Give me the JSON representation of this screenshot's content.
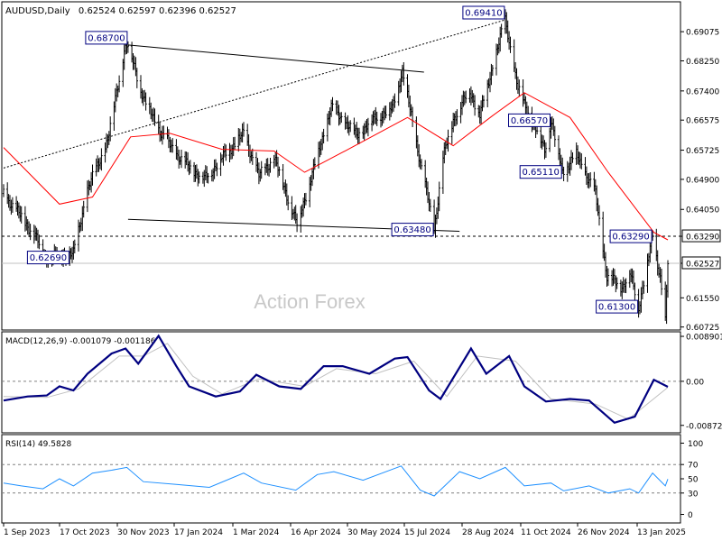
{
  "header": {
    "symbol": "AUDUSD,Daily",
    "ohlc": "0.62524 0.62597 0.62396 0.62527"
  },
  "watermark": "Action Forex",
  "colors": {
    "bars": "#000000",
    "ma": "#ff0000",
    "macd": "#000080",
    "signal": "#c0c0c0",
    "rsi": "#1e90ff",
    "label_border": "#000080",
    "label_text": "#000080",
    "current_tag_bg": "#ffffff",
    "current_line": "#c0c0c0"
  },
  "chart_data": [
    {
      "type": "ohlc",
      "series": [
        {
          "name": "AUDUSD",
          "values": "ohlc-path"
        }
      ],
      "ylim": [
        0.6064,
        0.6992
      ],
      "y_ticks": [
        "0.69075",
        "0.68250",
        "0.67400",
        "0.66575",
        "0.65725",
        "0.64900",
        "0.64050",
        "0.63290",
        "0.62527",
        "0.61550",
        "0.60725"
      ],
      "y_tick_values": [
        0.69075,
        0.6825,
        0.674,
        0.66575,
        0.65725,
        0.649,
        0.6405,
        0.6329,
        0.62527,
        0.6155,
        0.60725
      ],
      "x_ticks": [
        "1 Sep 2023",
        "17 Oct 2023",
        "30 Nov 2023",
        "17 Jan 2024",
        "1 Mar 2024",
        "16 Apr 2024",
        "30 May 2024",
        "15 Jul 2024",
        "28 Aug 2024",
        "11 Oct 2024",
        "26 Nov 2024",
        "13 Jan 2025"
      ],
      "pivots": [
        {
          "date": "2023-09-01",
          "value": 0.645
        },
        {
          "date": "2023-09-25",
          "value": 0.6335
        },
        {
          "date": "2023-10-04",
          "value": 0.6269
        },
        {
          "date": "2023-10-26",
          "value": 0.628
        },
        {
          "date": "2023-11-06",
          "value": 0.646
        },
        {
          "date": "2023-11-22",
          "value": 0.66
        },
        {
          "date": "2023-12-05",
          "value": 0.6855
        },
        {
          "date": "2023-12-08",
          "value": 0.687
        },
        {
          "date": "2023-12-20",
          "value": 0.672
        },
        {
          "date": "2024-01-03",
          "value": 0.662
        },
        {
          "date": "2024-01-20",
          "value": 0.654
        },
        {
          "date": "2024-02-06",
          "value": 0.649
        },
        {
          "date": "2024-02-20",
          "value": 0.655
        },
        {
          "date": "2024-03-08",
          "value": 0.662
        },
        {
          "date": "2024-03-20",
          "value": 0.65
        },
        {
          "date": "2024-04-01",
          "value": 0.655
        },
        {
          "date": "2024-04-19",
          "value": 0.6362
        },
        {
          "date": "2024-05-01",
          "value": 0.6505
        },
        {
          "date": "2024-05-16",
          "value": 0.6695
        },
        {
          "date": "2024-06-05",
          "value": 0.6615
        },
        {
          "date": "2024-06-20",
          "value": 0.6665
        },
        {
          "date": "2024-07-03",
          "value": 0.669
        },
        {
          "date": "2024-07-11",
          "value": 0.6798
        },
        {
          "date": "2024-07-25",
          "value": 0.654
        },
        {
          "date": "2024-08-05",
          "value": 0.6348
        },
        {
          "date": "2024-08-12",
          "value": 0.655
        },
        {
          "date": "2024-08-20",
          "value": 0.666
        },
        {
          "date": "2024-09-02",
          "value": 0.674
        },
        {
          "date": "2024-09-10",
          "value": 0.667
        },
        {
          "date": "2024-09-20",
          "value": 0.681
        },
        {
          "date": "2024-09-30",
          "value": 0.6941
        },
        {
          "date": "2024-10-10",
          "value": 0.6745
        },
        {
          "date": "2024-10-18",
          "value": 0.668
        },
        {
          "date": "2024-10-31",
          "value": 0.6575
        },
        {
          "date": "2024-11-05",
          "value": 0.6655
        },
        {
          "date": "2024-11-14",
          "value": 0.6511
        },
        {
          "date": "2024-11-25",
          "value": 0.656
        },
        {
          "date": "2024-12-10",
          "value": 0.645
        },
        {
          "date": "2024-12-19",
          "value": 0.6215
        },
        {
          "date": "2024-12-31",
          "value": 0.6185
        },
        {
          "date": "2025-01-06",
          "value": 0.6225
        },
        {
          "date": "2025-01-13",
          "value": 0.613
        },
        {
          "date": "2025-01-20",
          "value": 0.6255
        },
        {
          "date": "2025-01-24",
          "value": 0.6329
        },
        {
          "date": "2025-01-30",
          "value": 0.6215
        },
        {
          "date": "2025-02-03",
          "value": 0.6088
        },
        {
          "date": "2025-02-05",
          "value": 0.6253
        }
      ],
      "ma_path": [
        {
          "date": "2023-09-01",
          "value": 0.658
        },
        {
          "date": "2023-10-15",
          "value": 0.642
        },
        {
          "date": "2023-11-10",
          "value": 0.644
        },
        {
          "date": "2023-12-10",
          "value": 0.661
        },
        {
          "date": "2024-01-10",
          "value": 0.662
        },
        {
          "date": "2024-02-20",
          "value": 0.6575
        },
        {
          "date": "2024-04-01",
          "value": 0.657
        },
        {
          "date": "2024-04-25",
          "value": 0.651
        },
        {
          "date": "2024-06-01",
          "value": 0.658
        },
        {
          "date": "2024-07-15",
          "value": 0.6665
        },
        {
          "date": "2024-08-20",
          "value": 0.6585
        },
        {
          "date": "2024-09-20",
          "value": 0.667
        },
        {
          "date": "2024-10-15",
          "value": 0.6735
        },
        {
          "date": "2024-11-20",
          "value": 0.6665
        },
        {
          "date": "2024-12-20",
          "value": 0.651
        },
        {
          "date": "2025-01-25",
          "value": 0.634
        },
        {
          "date": "2025-02-05",
          "value": 0.6319
        }
      ],
      "annotations": [
        {
          "text": "0.68700",
          "date": "2023-12-08",
          "value": 0.687,
          "side": "left",
          "anchor": "above"
        },
        {
          "text": "0.69410",
          "date": "2024-09-30",
          "value": 0.6941,
          "side": "left",
          "anchor": "above"
        },
        {
          "text": "0.66570",
          "date": "2024-11-05",
          "value": 0.6657,
          "side": "left",
          "anchor": "center"
        },
        {
          "text": "0.65110",
          "date": "2024-11-14",
          "value": 0.6511,
          "side": "left",
          "anchor": "center"
        },
        {
          "text": "0.63480",
          "date": "2024-08-05",
          "value": 0.6348,
          "side": "left",
          "anchor": "center"
        },
        {
          "text": "0.62690",
          "date": "2023-10-04",
          "value": 0.6269,
          "side": "right",
          "anchor": "center"
        },
        {
          "text": "0.63290",
          "date": "2025-01-24",
          "value": 0.6329,
          "side": "left",
          "anchor": "center"
        },
        {
          "text": "0.61300",
          "date": "2025-01-13",
          "value": 0.613,
          "side": "left",
          "anchor": "center"
        }
      ],
      "trendlines": [
        {
          "from": {
            "date": "2023-09-01",
            "value": 0.6522
          },
          "to": {
            "date": "2024-09-30",
            "value": 0.6941
          },
          "style": "dotted"
        },
        {
          "from": {
            "date": "2023-12-08",
            "value": 0.687
          },
          "to": {
            "date": "2024-07-28",
            "value": 0.6793
          },
          "style": "solid"
        },
        {
          "from": {
            "date": "2023-12-08",
            "value": 0.6377
          },
          "to": {
            "date": "2024-08-25",
            "value": 0.6343
          },
          "style": "solid"
        }
      ],
      "levels": [
        {
          "value": 0.6329,
          "style": "dashed"
        },
        {
          "value": 0.62527,
          "style": "solid-gray"
        }
      ],
      "current_price": "0.62527",
      "current_value": 0.62527
    },
    {
      "type": "line",
      "title": "MACD(12,26,9) -0.001079 -0.001186",
      "series": [
        {
          "name": "MACD",
          "values": "macd-path"
        },
        {
          "name": "Signal",
          "values": "signal-path"
        }
      ],
      "ylim": [
        -0.0102,
        0.0098
      ],
      "y_ticks": [
        "0.008901",
        "0.00",
        "-0.008729"
      ],
      "y_tick_values": [
        0.008901,
        0,
        -0.008729
      ],
      "macd_path": [
        {
          "date": "2023-09-01",
          "value": -0.0038
        },
        {
          "date": "2023-09-20",
          "value": -0.003
        },
        {
          "date": "2023-10-05",
          "value": -0.0028
        },
        {
          "date": "2023-10-15",
          "value": -0.001
        },
        {
          "date": "2023-10-26",
          "value": -0.0018
        },
        {
          "date": "2023-11-06",
          "value": 0.0015
        },
        {
          "date": "2023-11-25",
          "value": 0.0055
        },
        {
          "date": "2023-12-06",
          "value": 0.0065
        },
        {
          "date": "2023-12-16",
          "value": 0.0035
        },
        {
          "date": "2024-01-01",
          "value": 0.009
        },
        {
          "date": "2024-01-15",
          "value": 0.003
        },
        {
          "date": "2024-01-25",
          "value": -0.001
        },
        {
          "date": "2024-02-15",
          "value": -0.003
        },
        {
          "date": "2024-03-05",
          "value": -0.002
        },
        {
          "date": "2024-03-18",
          "value": 0.0013
        },
        {
          "date": "2024-04-05",
          "value": -0.001
        },
        {
          "date": "2024-04-22",
          "value": -0.0015
        },
        {
          "date": "2024-05-10",
          "value": 0.003
        },
        {
          "date": "2024-05-25",
          "value": 0.003
        },
        {
          "date": "2024-06-15",
          "value": 0.0015
        },
        {
          "date": "2024-07-05",
          "value": 0.0045
        },
        {
          "date": "2024-07-15",
          "value": 0.0048
        },
        {
          "date": "2024-08-01",
          "value": -0.0018
        },
        {
          "date": "2024-08-10",
          "value": -0.0035
        },
        {
          "date": "2024-09-03",
          "value": 0.0065
        },
        {
          "date": "2024-09-15",
          "value": 0.0015
        },
        {
          "date": "2024-10-03",
          "value": 0.005
        },
        {
          "date": "2024-10-15",
          "value": -0.001
        },
        {
          "date": "2024-11-01",
          "value": -0.004
        },
        {
          "date": "2024-11-20",
          "value": -0.0035
        },
        {
          "date": "2024-12-05",
          "value": -0.0038
        },
        {
          "date": "2024-12-25",
          "value": -0.0082
        },
        {
          "date": "2025-01-10",
          "value": -0.007
        },
        {
          "date": "2025-01-25",
          "value": 0.0003
        },
        {
          "date": "2025-02-05",
          "value": -0.0011
        }
      ],
      "signal_path": [
        {
          "date": "2023-09-01",
          "value": -0.003
        },
        {
          "date": "2023-10-05",
          "value": -0.0032
        },
        {
          "date": "2023-10-30",
          "value": -0.0015
        },
        {
          "date": "2023-12-01",
          "value": 0.005
        },
        {
          "date": "2023-12-20",
          "value": 0.005
        },
        {
          "date": "2024-01-08",
          "value": 0.0075
        },
        {
          "date": "2024-01-28",
          "value": 0.001
        },
        {
          "date": "2024-02-20",
          "value": -0.0025
        },
        {
          "date": "2024-03-20",
          "value": 0.0005
        },
        {
          "date": "2024-04-25",
          "value": -0.001
        },
        {
          "date": "2024-05-20",
          "value": 0.0025
        },
        {
          "date": "2024-06-20",
          "value": 0.0015
        },
        {
          "date": "2024-07-20",
          "value": 0.004
        },
        {
          "date": "2024-08-15",
          "value": -0.003
        },
        {
          "date": "2024-09-08",
          "value": 0.005
        },
        {
          "date": "2024-10-08",
          "value": 0.004
        },
        {
          "date": "2024-11-05",
          "value": -0.0035
        },
        {
          "date": "2024-12-10",
          "value": -0.0045
        },
        {
          "date": "2025-01-05",
          "value": -0.0075
        },
        {
          "date": "2025-02-05",
          "value": -0.0012
        }
      ]
    },
    {
      "type": "line",
      "title": "RSI(14) 49.5828",
      "series": [
        {
          "name": "RSI",
          "values": "rsi-path"
        }
      ],
      "ylim": [
        -12,
        112
      ],
      "y_ticks": [
        "100",
        "70",
        "50",
        "30",
        "0"
      ],
      "y_tick_values": [
        100,
        70,
        50,
        30,
        0
      ],
      "levels": [
        70,
        30
      ],
      "rsi_path": [
        {
          "date": "2023-09-01",
          "value": 44
        },
        {
          "date": "2023-09-15",
          "value": 40
        },
        {
          "date": "2023-10-02",
          "value": 36
        },
        {
          "date": "2023-10-15",
          "value": 50
        },
        {
          "date": "2023-10-26",
          "value": 40
        },
        {
          "date": "2023-11-10",
          "value": 58
        },
        {
          "date": "2023-11-25",
          "value": 62
        },
        {
          "date": "2023-12-07",
          "value": 66
        },
        {
          "date": "2023-12-20",
          "value": 46
        },
        {
          "date": "2024-01-15",
          "value": 42
        },
        {
          "date": "2024-02-10",
          "value": 38
        },
        {
          "date": "2024-03-08",
          "value": 58
        },
        {
          "date": "2024-03-22",
          "value": 44
        },
        {
          "date": "2024-04-18",
          "value": 34
        },
        {
          "date": "2024-05-05",
          "value": 56
        },
        {
          "date": "2024-05-18",
          "value": 60
        },
        {
          "date": "2024-06-10",
          "value": 48
        },
        {
          "date": "2024-07-10",
          "value": 68
        },
        {
          "date": "2024-07-25",
          "value": 34
        },
        {
          "date": "2024-08-05",
          "value": 26
        },
        {
          "date": "2024-08-25",
          "value": 60
        },
        {
          "date": "2024-09-10",
          "value": 50
        },
        {
          "date": "2024-09-30",
          "value": 66
        },
        {
          "date": "2024-10-15",
          "value": 40
        },
        {
          "date": "2024-11-05",
          "value": 44
        },
        {
          "date": "2024-11-15",
          "value": 33
        },
        {
          "date": "2024-12-05",
          "value": 40
        },
        {
          "date": "2024-12-20",
          "value": 30
        },
        {
          "date": "2025-01-06",
          "value": 36
        },
        {
          "date": "2025-01-13",
          "value": 30
        },
        {
          "date": "2025-01-24",
          "value": 58
        },
        {
          "date": "2025-02-03",
          "value": 40
        },
        {
          "date": "2025-02-05",
          "value": 49.5828
        }
      ]
    }
  ]
}
